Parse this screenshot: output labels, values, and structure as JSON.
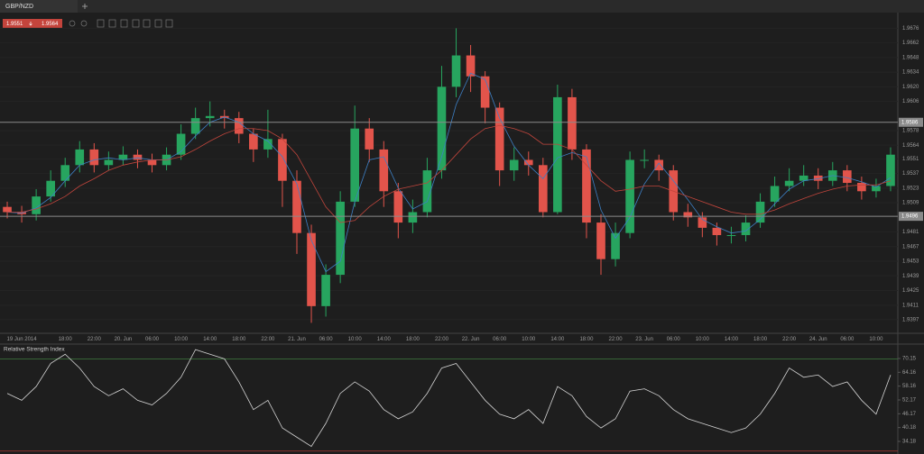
{
  "tab": {
    "label": "GBP/NZD"
  },
  "price_box": {
    "bid": "1.9551",
    "ask": "1.9564"
  },
  "chart_data": [
    {
      "type": "candlestick",
      "categories": [
        null,
        "19 Jun 2014",
        null,
        null,
        "18:00",
        null,
        "22:00",
        null,
        "20. Jun",
        null,
        "06:00",
        null,
        "10:00",
        null,
        "14:00",
        null,
        "18:00",
        null,
        "22:00",
        null,
        "21. Jun",
        null,
        "06:00",
        null,
        "10:00",
        null,
        "14:00",
        null,
        "18:00",
        null,
        "22:00",
        null,
        "22. Jun",
        null,
        "06:00",
        null,
        "10:00",
        null,
        "14:00",
        null,
        "18:00",
        null,
        "22:00",
        null,
        "23. Jun",
        null,
        "06:00",
        null,
        "10:00",
        null,
        "14:00",
        null,
        "18:00",
        null,
        "22:00",
        null,
        "24. Jun",
        null,
        "06:00",
        null,
        "10:00",
        null
      ],
      "open": [
        1.9505,
        1.95,
        1.9498,
        1.9515,
        1.953,
        1.9545,
        1.956,
        1.9545,
        1.955,
        1.9555,
        1.955,
        1.9545,
        1.9555,
        1.9575,
        1.959,
        1.9592,
        1.959,
        1.9575,
        1.956,
        1.957,
        1.953,
        1.948,
        1.941,
        1.944,
        1.951,
        1.958,
        1.956,
        1.952,
        1.949,
        1.95,
        1.954,
        1.962,
        1.965,
        1.963,
        1.96,
        1.954,
        1.955,
        1.9545,
        1.95,
        1.961,
        1.956,
        1.949,
        1.9455,
        1.948,
        1.955,
        1.955,
        1.954,
        1.95,
        1.9495,
        1.9485,
        1.9478,
        1.9478,
        1.949,
        1.951,
        1.9525,
        1.953,
        1.9535,
        1.953,
        1.954,
        1.9528,
        1.952,
        1.9525
      ],
      "high": [
        1.951,
        1.9506,
        1.9522,
        1.954,
        1.9552,
        1.9568,
        1.9566,
        1.9558,
        1.9563,
        1.956,
        1.9556,
        1.9562,
        1.9584,
        1.96,
        1.9606,
        1.9598,
        1.9596,
        1.958,
        1.9598,
        1.9575,
        1.954,
        1.9488,
        1.945,
        1.952,
        1.9602,
        1.959,
        1.9568,
        1.9528,
        1.9512,
        1.9552,
        1.964,
        1.9676,
        1.966,
        1.9635,
        1.9605,
        1.9562,
        1.9558,
        1.9552,
        1.9622,
        1.9618,
        1.9565,
        1.9498,
        1.949,
        1.9558,
        1.956,
        1.9555,
        1.9545,
        1.9508,
        1.95,
        1.949,
        1.9486,
        1.9497,
        1.9518,
        1.9534,
        1.9542,
        1.9545,
        1.9542,
        1.9548,
        1.9545,
        1.9534,
        1.9532,
        1.9562
      ],
      "low": [
        1.9494,
        1.949,
        1.9492,
        1.951,
        1.9524,
        1.9538,
        1.9538,
        1.954,
        1.9545,
        1.9542,
        1.9538,
        1.954,
        1.955,
        1.957,
        1.9582,
        1.958,
        1.9566,
        1.9548,
        1.9552,
        1.9505,
        1.946,
        1.9394,
        1.94,
        1.9432,
        1.9505,
        1.9548,
        1.9505,
        1.9475,
        1.948,
        1.9495,
        1.9532,
        1.961,
        1.9615,
        1.9585,
        1.9525,
        1.953,
        1.9535,
        1.9495,
        1.9498,
        1.955,
        1.9475,
        1.944,
        1.9448,
        1.9475,
        1.9542,
        1.953,
        1.9492,
        1.9486,
        1.9476,
        1.9468,
        1.947,
        1.9472,
        1.9485,
        1.9505,
        1.952,
        1.9525,
        1.9522,
        1.9525,
        1.952,
        1.9512,
        1.9514,
        1.952
      ],
      "close": [
        1.95,
        1.9498,
        1.9515,
        1.953,
        1.9545,
        1.956,
        1.9545,
        1.955,
        1.9555,
        1.955,
        1.9545,
        1.9555,
        1.9575,
        1.959,
        1.9592,
        1.959,
        1.9575,
        1.956,
        1.957,
        1.953,
        1.948,
        1.941,
        1.944,
        1.951,
        1.958,
        1.956,
        1.952,
        1.949,
        1.95,
        1.954,
        1.962,
        1.965,
        1.963,
        1.96,
        1.954,
        1.955,
        1.9545,
        1.95,
        1.961,
        1.956,
        1.949,
        1.9455,
        1.948,
        1.955,
        1.955,
        1.954,
        1.95,
        1.9495,
        1.9485,
        1.9478,
        1.9478,
        1.949,
        1.951,
        1.9525,
        1.953,
        1.9535,
        1.953,
        1.954,
        1.9528,
        1.952,
        1.9525,
        1.9555
      ],
      "up_color": "#27a55f",
      "down_color": "#e2544b",
      "series": [
        {
          "color": "#3d7fc4",
          "values": [
            1.95,
            1.9499,
            1.9504,
            1.9514,
            1.953,
            1.9545,
            1.955,
            1.9552,
            1.955,
            1.9552,
            1.955,
            1.955,
            1.9558,
            1.9573,
            1.9586,
            1.9591,
            1.9586,
            1.9575,
            1.9568,
            1.9553,
            1.9527,
            1.9473,
            1.9443,
            1.9453,
            1.951,
            1.955,
            1.9553,
            1.9523,
            1.9503,
            1.951,
            1.9553,
            1.9603,
            1.9633,
            1.9627,
            1.959,
            1.9563,
            1.9545,
            1.9532,
            1.9552,
            1.9557,
            1.9553,
            1.9502,
            1.9475,
            1.9495,
            1.9527,
            1.9547,
            1.953,
            1.9512,
            1.9493,
            1.9486,
            1.948,
            1.9482,
            1.9493,
            1.9508,
            1.9522,
            1.953,
            1.9532,
            1.9535,
            1.9533,
            1.9529,
            1.9524,
            1.9533
          ]
        },
        {
          "color": "#c0453c",
          "values": [
            1.95,
            1.95,
            1.9503,
            1.9508,
            1.9515,
            1.9525,
            1.9532,
            1.954,
            1.9545,
            1.9548,
            1.955,
            1.955,
            1.9553,
            1.956,
            1.9568,
            1.9575,
            1.958,
            1.958,
            1.9578,
            1.957,
            1.9555,
            1.953,
            1.9505,
            1.949,
            1.9492,
            1.9505,
            1.9515,
            1.9522,
            1.9525,
            1.9528,
            1.954,
            1.9555,
            1.957,
            1.958,
            1.9583,
            1.958,
            1.9575,
            1.9565,
            1.9565,
            1.956,
            1.9545,
            1.953,
            1.952,
            1.9522,
            1.9525,
            1.9525,
            1.952,
            1.9515,
            1.951,
            1.9505,
            1.95,
            1.9498,
            1.9498,
            1.9502,
            1.9508,
            1.9513,
            1.9518,
            1.9522,
            1.9525,
            1.9526,
            1.9526,
            1.953
          ]
        }
      ],
      "hlines": [
        1.9586,
        1.9496
      ],
      "ylim": [
        1.9384,
        1.9691
      ],
      "yticks": [
        1.9676,
        1.9662,
        1.9648,
        1.9634,
        {
          "value": 1.962,
          "label": "1.9620"
        },
        1.9606,
        1.9578,
        1.9564,
        1.9551,
        1.9537,
        1.9523,
        1.9509,
        1.9481,
        1.9467,
        1.9453,
        1.9439,
        1.9425,
        1.9411,
        1.9397
      ]
    },
    {
      "type": "line",
      "title": "Relative Strength Index",
      "color": "#d4d4d4",
      "values": [
        55,
        52,
        58,
        68,
        72,
        66,
        58,
        54,
        57,
        52,
        50,
        55,
        62,
        74,
        72,
        70,
        60,
        48,
        52,
        40,
        36,
        32,
        42,
        55,
        60,
        56,
        48,
        44,
        47,
        55,
        66,
        68,
        60,
        52,
        46,
        44,
        48,
        42,
        58,
        54,
        45,
        40,
        44,
        56,
        57,
        54,
        48,
        44,
        42,
        40,
        38,
        40,
        46,
        55,
        66,
        62,
        63,
        58,
        60,
        52,
        46,
        63
      ],
      "levels": [
        {
          "value": 70,
          "color": "#3f7d3f"
        },
        {
          "value": 30,
          "color": "#b03a35"
        }
      ],
      "ylim": [
        29.5,
        76
      ],
      "yticks": [
        70.15,
        64.16,
        58.16,
        52.17,
        46.17,
        40.18,
        34.18
      ]
    }
  ]
}
